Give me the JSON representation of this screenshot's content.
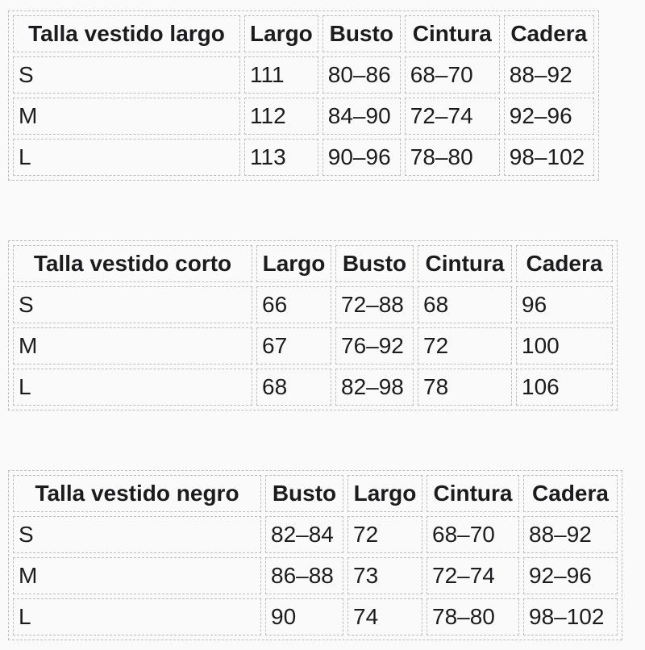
{
  "page": {
    "background_color": "#fafafa",
    "text_color": "#1c1c1e",
    "border_color": "#bdbdbd"
  },
  "tables": [
    {
      "title": "Talla vestido largo",
      "headers": [
        "Talla vestido largo",
        "Largo",
        "Busto",
        "Cintura",
        "Cadera"
      ],
      "rows": [
        [
          "S",
          "111",
          "80–86",
          "68–70",
          "88–92"
        ],
        [
          "M",
          "112",
          "84–90",
          "72–74",
          "92–96"
        ],
        [
          "L",
          "113",
          "90–96",
          "78–80",
          "98–102"
        ]
      ]
    },
    {
      "title": "Talla vestido corto",
      "headers": [
        "Talla vestido corto",
        "Largo",
        "Busto",
        "Cintura",
        "Cadera"
      ],
      "rows": [
        [
          "S",
          "66",
          "72–88",
          "68",
          "96"
        ],
        [
          "M",
          "67",
          "76–92",
          "72",
          "100"
        ],
        [
          "L",
          "68",
          "82–98",
          "78",
          "106"
        ]
      ]
    },
    {
      "title": "Talla vestido negro",
      "headers": [
        "Talla vestido negro",
        "Busto",
        "Largo",
        "Cintura",
        "Cadera"
      ],
      "rows": [
        [
          "S",
          "82–84",
          "72",
          "68–70",
          "88–92"
        ],
        [
          "M",
          "86–88",
          "73",
          "72–74",
          "92–96"
        ],
        [
          "L",
          "90",
          "74",
          "78–80",
          "98–102"
        ]
      ]
    }
  ]
}
